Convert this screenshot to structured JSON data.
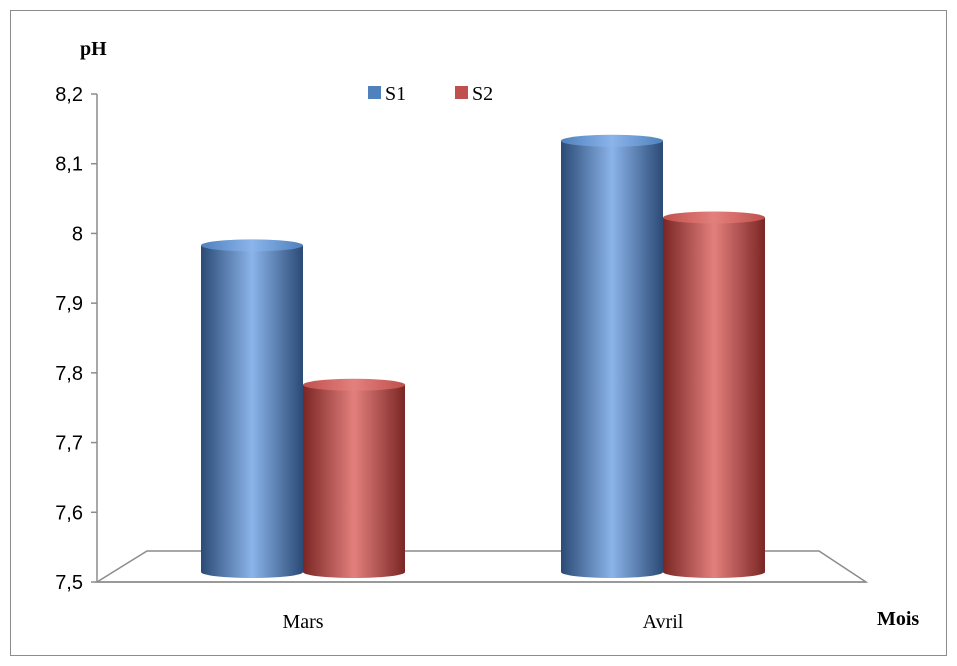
{
  "chart_data": {
    "type": "bar",
    "title": "",
    "ylabel": "pH",
    "xlabel": "Mois",
    "categories": [
      "Mars",
      "Avril"
    ],
    "series": [
      {
        "name": "S1",
        "values": [
          7.98,
          8.13
        ],
        "color": "#4f81bd",
        "dark": "#2b4a75",
        "light": "#8bb4ea"
      },
      {
        "name": "S2",
        "values": [
          7.78,
          8.02
        ],
        "color": "#c0504d",
        "dark": "#7a2624",
        "light": "#e3807d"
      }
    ],
    "ylim": [
      7.5,
      8.2
    ],
    "yticks": [
      "7,5",
      "7,6",
      "7,7",
      "7,8",
      "7,9",
      "8",
      "8,1",
      "8,2"
    ],
    "legend_position": "top-center",
    "grid": false
  }
}
